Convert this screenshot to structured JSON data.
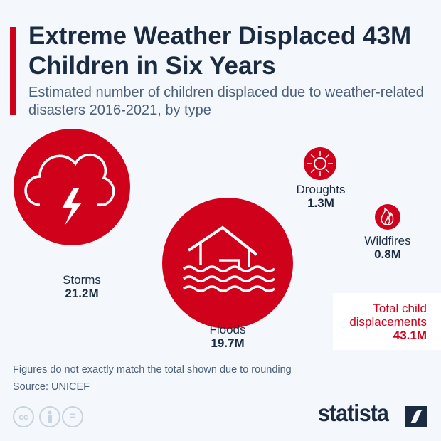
{
  "title": "Extreme Weather Displaced 43M Children in Six Years",
  "subtitle": "Estimated number of children displaced due to weather-related disasters 2016-2021, by type",
  "chart_data": {
    "type": "bubble",
    "unit": "M",
    "categories": [
      "Storms",
      "Floods",
      "Droughts",
      "Wildfires"
    ],
    "values": [
      21.2,
      19.7,
      1.3,
      0.8
    ],
    "value_labels": [
      "21.2M",
      "19.7M",
      "1.3M",
      "0.8M"
    ],
    "icons": [
      "cloud-lightning-icon",
      "flooded-house-icon",
      "sun-icon",
      "flame-icon"
    ],
    "color": "#d0021b"
  },
  "total": {
    "label_line1": "Total child",
    "label_line2": "displacements",
    "value": "43.1M"
  },
  "footer": {
    "note": "Figures do not exactly match the total shown due to rounding",
    "source": "Source: UNICEF"
  },
  "license_icons": [
    "cc",
    "by",
    "=",
    ""
  ],
  "brand": "statista"
}
